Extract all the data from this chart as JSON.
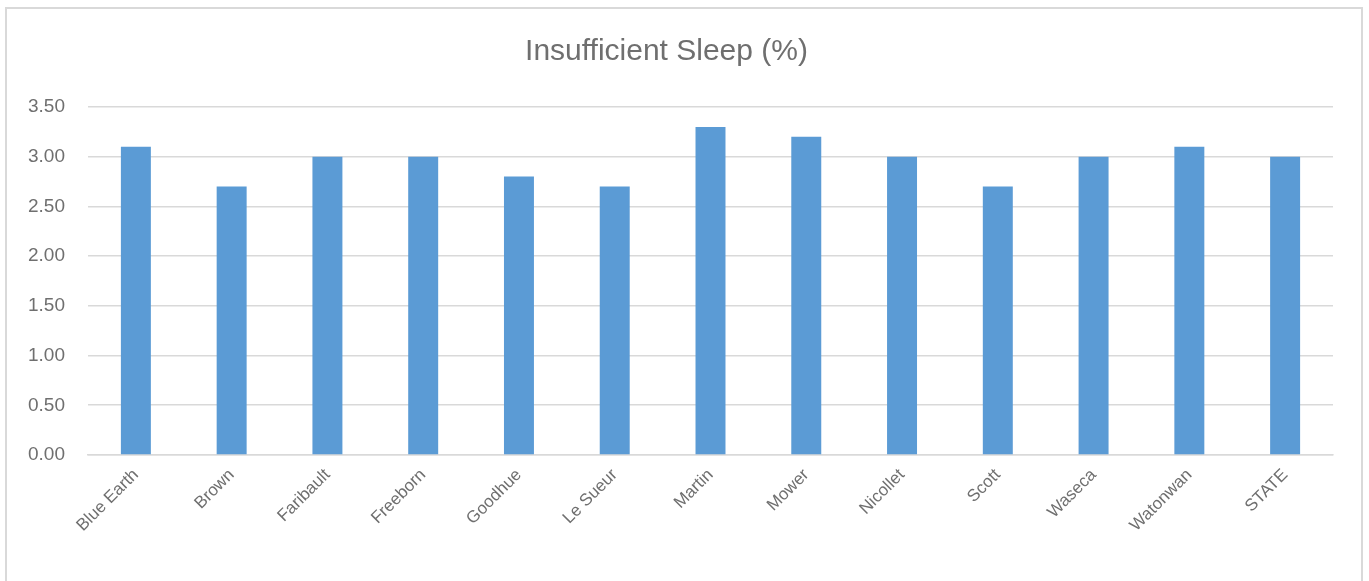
{
  "chart_data": {
    "type": "bar",
    "title": "Insufficient Sleep (%)",
    "categories": [
      "Blue Earth",
      "Brown",
      "Faribault",
      "Freeborn",
      "Goodhue",
      "Le Sueur",
      "Martin",
      "Mower",
      "Nicollet",
      "Scott",
      "Waseca",
      "Watonwan",
      "STATE"
    ],
    "values": [
      3.1,
      2.7,
      3.0,
      3.0,
      2.8,
      2.7,
      3.3,
      3.2,
      3.0,
      2.7,
      3.0,
      3.1,
      3.0
    ],
    "color": "#5b9bd5",
    "ylim": [
      0,
      3.5
    ],
    "yticks": [
      {
        "value": 0,
        "label": "0.00"
      },
      {
        "value": 0.5,
        "label": "0.50"
      },
      {
        "value": 1,
        "label": "1.00"
      },
      {
        "value": 1.5,
        "label": "1.50"
      },
      {
        "value": 2,
        "label": "2.00"
      },
      {
        "value": 2.5,
        "label": "2.50"
      },
      {
        "value": 3,
        "label": "3.00"
      },
      {
        "value": 3.5,
        "label": "3.50"
      }
    ],
    "grid": "y",
    "legend": false
  }
}
